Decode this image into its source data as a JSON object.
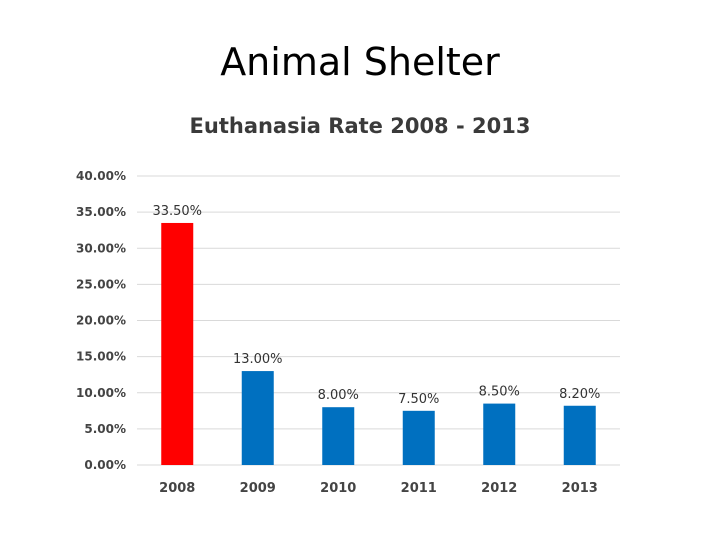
{
  "slide": {
    "title": "Animal Shelter"
  },
  "colors": {
    "highlight": "#ff0000",
    "bar": "#0070c0",
    "grid": "#d9d9d9"
  },
  "chart_data": {
    "type": "bar",
    "title": "Euthanasia Rate  2008 - 2013",
    "xlabel": "",
    "ylabel": "",
    "categories": [
      "2008",
      "2009",
      "2010",
      "2011",
      "2012",
      "2013"
    ],
    "values": [
      33.5,
      13.0,
      8.0,
      7.5,
      8.5,
      8.2
    ],
    "data_labels": [
      "33.50%",
      "13.00%",
      "8.00%",
      "7.50%",
      "8.50%",
      "8.20%"
    ],
    "highlighted_category": "2008",
    "ylim": [
      0,
      40
    ],
    "yticks": [
      0,
      5,
      10,
      15,
      20,
      25,
      30,
      35,
      40
    ],
    "ytick_labels": [
      "0.00%",
      "5.00%",
      "10.00%",
      "15.00%",
      "20.00%",
      "25.00%",
      "30.00%",
      "35.00%",
      "40.00%"
    ],
    "grid": true,
    "legend": "none"
  }
}
